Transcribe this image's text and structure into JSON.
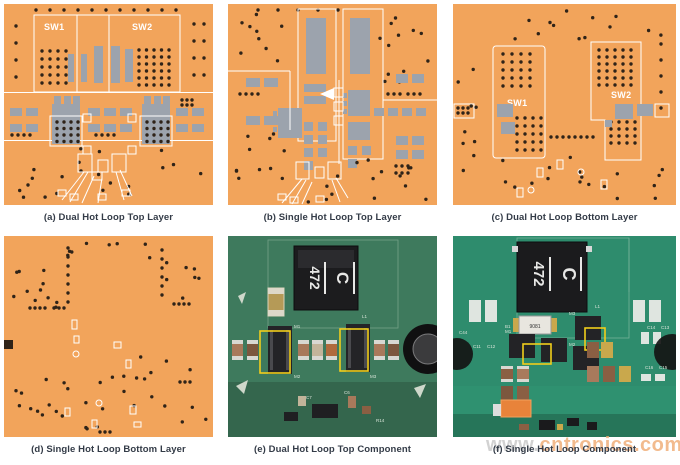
{
  "figure": {
    "watermark": {
      "prefix": "www.",
      "domain": "cntronics.com"
    }
  },
  "colors": {
    "copper_orange": "#F2A45B",
    "pad_gray": "#9CA3AD",
    "via_dark": "#2F2318",
    "outline_white": "#FFFFFF",
    "caption_text": "#333B47",
    "pcb_green_photo_e": "#3E7A5D",
    "pcb_green_photo_f": "#2E8C6D",
    "highlight_yellow": "#F2CE1B",
    "watermark_gray": "#C9C9C9",
    "watermark_orange": "#F0AD76"
  },
  "panels": {
    "a": {
      "caption": "(a) Dual Hot Loop Top Layer",
      "labels": {
        "sw1": "SW1",
        "sw2": "SW2"
      }
    },
    "b": {
      "caption": "(b) Single Hot Loop Top Layer"
    },
    "c": {
      "caption": "(c) Dual Hot Loop Bottom Layer",
      "labels": {
        "sw1": "SW1",
        "sw2": "SW2"
      }
    },
    "d": {
      "caption": "(d) Single Hot Loop Bottom Layer"
    },
    "e": {
      "caption": "(e) Dual Hot Loop Top Component",
      "inductor": {
        "logo": "C",
        "marking": "472"
      },
      "refs": {
        "l1": "L1",
        "m1": "M1",
        "m2": "M2",
        "m3": "M3",
        "c7": "C7",
        "c6": "C6",
        "r14": "R14"
      }
    },
    "f": {
      "caption": "(f) Single Hot Loop Component",
      "inductor": {
        "logo": "C",
        "marking": "472"
      },
      "shunt_marking": "9081",
      "refs": {
        "l1": "L1",
        "b1": "B1",
        "m1": "M1",
        "m2": "M2",
        "m3": "M3",
        "c44": "C44",
        "c11": "C11",
        "c12": "C12",
        "c14": "C14",
        "c13": "C13",
        "c16": "C16",
        "c15": "C15"
      }
    }
  }
}
